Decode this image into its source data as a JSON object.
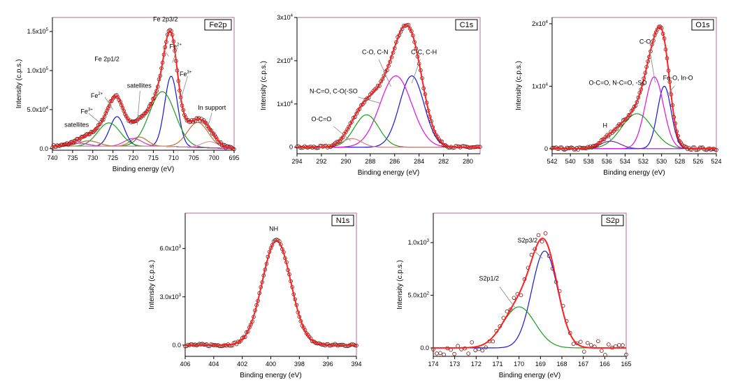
{
  "chart_data": [
    {
      "id": "fe2p",
      "type": "line",
      "title": "Fe2p",
      "xlabel": "Binding energy (eV)",
      "ylabel": "Intensity (c.p.s.)",
      "xlim": [
        740,
        695
      ],
      "ylim": [
        -2000,
        168000
      ],
      "xticks": [
        740,
        735,
        730,
        725,
        720,
        715,
        710,
        705,
        700,
        695
      ],
      "yticks": [
        {
          "v": 0,
          "m": "0.0",
          "e": ""
        },
        {
          "v": 50000,
          "m": "5.0x10",
          "e": "4"
        },
        {
          "v": 100000,
          "m": "1.0x10",
          "e": "5"
        },
        {
          "v": 150000,
          "m": "1.5x10",
          "e": "5"
        }
      ],
      "components": [
        {
          "center": 710.6,
          "amp": 90000,
          "width": 1.6,
          "color": "#1515e0"
        },
        {
          "center": 712.8,
          "amp": 70000,
          "width": 3.2,
          "color": "#1a9e1a"
        },
        {
          "center": 718.5,
          "amp": 12000,
          "width": 2.0,
          "color": "#c07030"
        },
        {
          "center": 720.0,
          "amp": 10000,
          "width": 2.2,
          "color": "#d030d0"
        },
        {
          "center": 724.0,
          "amp": 38000,
          "width": 1.8,
          "color": "#1515e0"
        },
        {
          "center": 726.0,
          "amp": 30000,
          "width": 2.8,
          "color": "#1a9e1a"
        },
        {
          "center": 731.0,
          "amp": 7000,
          "width": 2.5,
          "color": "#c07030"
        },
        {
          "center": 733.5,
          "amp": 4000,
          "width": 2.5,
          "color": "#d030d0"
        },
        {
          "center": 704.0,
          "amp": 32000,
          "width": 2.6,
          "color": "#c07030"
        },
        {
          "center": 701.0,
          "amp": 8000,
          "width": 2.0,
          "color": "#d0a0a0"
        }
      ],
      "baseline": [
        {
          "x": 740,
          "y": 3000
        },
        {
          "x": 712,
          "y": 3000
        },
        {
          "x": 695,
          "y": 0
        }
      ],
      "annotations": [
        {
          "label": "Fe 2p3/2",
          "x": 712.0,
          "y": 163000,
          "sup": "",
          "fs": 10
        },
        {
          "label": "Fe",
          "x": 709.5,
          "y": 128000,
          "sup": "2+",
          "fs": 8
        },
        {
          "label": "Fe",
          "x": 707.0,
          "y": 93000,
          "sup": "3+",
          "fs": 8
        },
        {
          "label": "Fe 2p1/2",
          "x": 726.5,
          "y": 112000,
          "sup": "",
          "fs": 10
        },
        {
          "label": "Fe",
          "x": 729.0,
          "y": 65000,
          "sup": "2+",
          "fs": 8
        },
        {
          "label": "Fe",
          "x": 731.5,
          "y": 45000,
          "sup": "3+",
          "fs": 8
        },
        {
          "label": "satellites",
          "x": 734.0,
          "y": 28000,
          "sup": "",
          "fs": 8
        },
        {
          "label": "satellites",
          "x": 718.5,
          "y": 78000,
          "sup": "",
          "fs": 8
        },
        {
          "label": "In support",
          "x": 700.5,
          "y": 50000,
          "sup": "",
          "fs": 8
        }
      ]
    },
    {
      "id": "c1s",
      "type": "line",
      "title": "C1s",
      "xlabel": "Binding energy (eV)",
      "ylabel": "Intensity (c.p.s.)",
      "xlim": [
        294,
        279
      ],
      "ylim": [
        -1500,
        30000
      ],
      "xticks": [
        294,
        292,
        290,
        288,
        286,
        284,
        282,
        280
      ],
      "yticks": [
        {
          "v": 0,
          "m": "0",
          "e": ""
        },
        {
          "v": 10000,
          "m": "1x10",
          "e": "4"
        },
        {
          "v": 20000,
          "m": "2x10",
          "e": "4"
        },
        {
          "v": 30000,
          "m": "3x10",
          "e": "4"
        }
      ],
      "components": [
        {
          "center": 284.6,
          "amp": 16500,
          "width": 1.0,
          "color": "#1515e0"
        },
        {
          "center": 285.9,
          "amp": 16500,
          "width": 1.3,
          "color": "#e010e0"
        },
        {
          "center": 288.3,
          "amp": 7500,
          "width": 1.0,
          "color": "#1a9e1a"
        },
        {
          "center": 289.5,
          "amp": 2000,
          "width": 0.8,
          "color": "#d08080"
        }
      ],
      "baseline": [
        {
          "x": 294,
          "y": 0
        },
        {
          "x": 279,
          "y": 0
        }
      ],
      "annotations": [
        {
          "label": "C-O, C-N",
          "x": 287.6,
          "y": 21500,
          "sup": "",
          "fs": 9
        },
        {
          "label": "C-C, C-H",
          "x": 283.6,
          "y": 21500,
          "sup": "",
          "fs": 9
        },
        {
          "label": "N-C=O, C-O(-SO",
          "x": 291.0,
          "y": 12500,
          "sup": "",
          "fs": 9
        },
        {
          "label": "O-C=O",
          "x": 292.0,
          "y": 6000,
          "sup": "",
          "fs": 9
        }
      ]
    },
    {
      "id": "o1s",
      "type": "line",
      "title": "O1s",
      "xlabel": "Binding energy (eV)",
      "ylabel": "Intensity (c.p.s.)",
      "xlim": [
        542,
        524
      ],
      "ylim": [
        -800,
        21000
      ],
      "xticks": [
        542,
        540,
        538,
        536,
        534,
        532,
        530,
        528,
        526,
        524
      ],
      "yticks": [
        {
          "v": 0,
          "m": "0",
          "e": ""
        },
        {
          "v": 10000,
          "m": "1x10",
          "e": "4"
        },
        {
          "v": 20000,
          "m": "2x10",
          "e": "4"
        }
      ],
      "components": [
        {
          "center": 529.7,
          "amp": 10000,
          "width": 0.75,
          "color": "#1515e0"
        },
        {
          "center": 530.8,
          "amp": 11500,
          "width": 1.0,
          "color": "#e010e0"
        },
        {
          "center": 532.7,
          "amp": 5600,
          "width": 1.7,
          "color": "#1a9e1a"
        },
        {
          "center": 535.6,
          "amp": 1200,
          "width": 1.1,
          "color": "#7a2a9a"
        }
      ],
      "baseline": [
        {
          "x": 542,
          "y": 0
        },
        {
          "x": 524,
          "y": 0
        }
      ],
      "annotations": [
        {
          "label": "C-O",
          "x": 531.8,
          "y": 16800,
          "sup": "",
          "fs": 9
        },
        {
          "label": "Fe-O, In-O",
          "x": 528.2,
          "y": 11000,
          "sup": "",
          "fs": 9
        },
        {
          "label": "O-C=O, N-C=O, -SO",
          "x": 534.8,
          "y": 10200,
          "sup": "",
          "fs": 9
        },
        {
          "label": "H",
          "x": 536.2,
          "y": 3400,
          "sup": "",
          "fs": 9
        }
      ]
    },
    {
      "id": "n1s",
      "type": "line",
      "title": "N1s",
      "xlabel": "Binding energy (eV)",
      "ylabel": "Intensity (c.p.s.)",
      "xlim": [
        406,
        394
      ],
      "ylim": [
        -700,
        8200
      ],
      "xticks": [
        406,
        404,
        402,
        400,
        398,
        396,
        394
      ],
      "yticks": [
        {
          "v": 0,
          "m": "0.0",
          "e": ""
        },
        {
          "v": 3000,
          "m": "3.0x10",
          "e": "3"
        },
        {
          "v": 6000,
          "m": "6.0x10",
          "e": "3"
        }
      ],
      "components": [
        {
          "center": 399.6,
          "amp": 6500,
          "width": 1.0,
          "color": "#e03030"
        }
      ],
      "baseline": [
        {
          "x": 406,
          "y": 0
        },
        {
          "x": 394,
          "y": 0
        }
      ],
      "annotations": [
        {
          "label": "NH",
          "x": 399.8,
          "y": 7100,
          "sup": "",
          "fs": 9
        }
      ]
    },
    {
      "id": "s2p",
      "type": "line",
      "title": "S2p",
      "xlabel": "Binding energy (eV)",
      "ylabel": "Intensity (c.p.s.)",
      "xlim": [
        174,
        165
      ],
      "ylim": [
        -80,
        1280
      ],
      "xticks": [
        174,
        173,
        172,
        171,
        170,
        169,
        168,
        167,
        166,
        165
      ],
      "yticks": [
        {
          "v": 0,
          "m": "0.0",
          "e": ""
        },
        {
          "v": 500,
          "m": "5.0x10",
          "e": "2"
        },
        {
          "v": 1000,
          "m": "1.0x10",
          "e": "3"
        }
      ],
      "components": [
        {
          "center": 168.8,
          "amp": 920,
          "width": 0.6,
          "color": "#1515e0"
        },
        {
          "center": 170.0,
          "amp": 390,
          "width": 0.75,
          "color": "#1a9e1a"
        }
      ],
      "baseline": [
        {
          "x": 174,
          "y": 0
        },
        {
          "x": 165,
          "y": 0
        }
      ],
      "annotations": [
        {
          "label": "S2p3/2",
          "x": 169.6,
          "y": 1000,
          "sup": "",
          "fs": 9
        },
        {
          "label": "S2p1/2",
          "x": 171.4,
          "y": 640,
          "sup": "",
          "fs": 9
        }
      ]
    }
  ],
  "colors": {
    "envelope": "#ff2020",
    "points": "#7a1010",
    "frame": "#b07090",
    "axis": "#000000"
  }
}
